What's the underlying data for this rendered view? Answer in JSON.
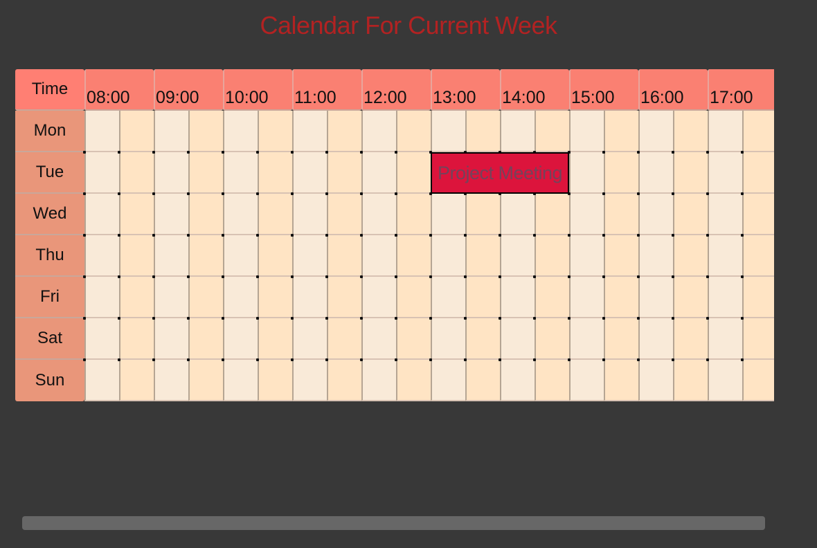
{
  "title": "Calendar For Current Week",
  "calendar": {
    "corner_label": "Time",
    "hours": [
      "08:00",
      "09:00",
      "10:00",
      "11:00",
      "12:00",
      "13:00",
      "14:00",
      "15:00",
      "16:00",
      "17:00"
    ],
    "days": [
      "Mon",
      "Tue",
      "Wed",
      "Thu",
      "Fri",
      "Sat",
      "Sun"
    ]
  },
  "event": {
    "label": "Project Meeting",
    "day": "Tue",
    "start": "13:00",
    "end": "15:00",
    "color": "#dc143c"
  },
  "colors": {
    "background": "#383838",
    "title": "#b22222",
    "header": "#fa8072",
    "day_label": "#e9967a",
    "cell_a": "#f9ead8",
    "cell_b": "#ffe4c4"
  }
}
